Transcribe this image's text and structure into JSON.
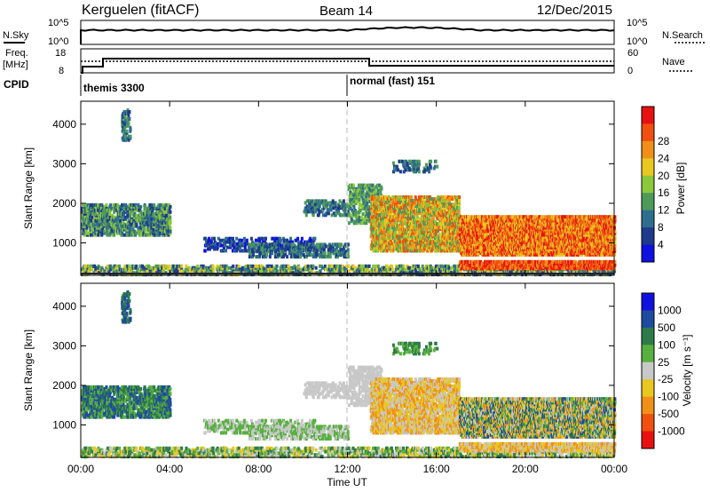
{
  "header": {
    "station": "Kerguelen (fitACF)",
    "beam": "Beam 14",
    "date": "12/Dec/2015"
  },
  "strip1": {
    "left_label": "N.Sky",
    "right_label": "N.Search",
    "left_ticks": [
      "10^5",
      "10^0"
    ],
    "right_ticks": [
      "10^5",
      "10^0"
    ]
  },
  "strip2": {
    "left_label_1": "Freq.",
    "left_label_2": "[MHz]",
    "right_label": "Nave",
    "left_ticks": [
      "18",
      "8"
    ],
    "right_ticks": [
      "60",
      "0"
    ]
  },
  "cpid": {
    "label": "CPID",
    "programs": [
      {
        "name": "themis 3300",
        "start_hour": 0
      },
      {
        "name": "normal (fast) 151",
        "start_hour": 12
      }
    ]
  },
  "xaxis": {
    "label": "Time UT",
    "ticks": [
      "00:00",
      "04:00",
      "08:00",
      "12:00",
      "16:00",
      "20:00",
      "00:00"
    ],
    "range_hours": [
      0,
      24
    ]
  },
  "colors": {
    "power": [
      "#1010e0",
      "#1e3a8c",
      "#2e6e8e",
      "#4e9a5a",
      "#8cc83c",
      "#e8c820",
      "#f09018",
      "#f05010",
      "#e81010"
    ],
    "velocity": [
      "#1010e0",
      "#1e4aa0",
      "#2e7a4a",
      "#58b040",
      "#c8c8c8",
      "#e8c820",
      "#f09018",
      "#f05010",
      "#e81010"
    ]
  },
  "chart_data": [
    {
      "type": "heatmap",
      "title": "",
      "ylabel": "Slant Range [km]",
      "yticks": [
        "1000",
        "2000",
        "3000",
        "4000"
      ],
      "ylim": [
        180,
        4580
      ],
      "colorbar_label": "Power [dB]",
      "colorbar_ticks": [
        "4",
        "8",
        "12",
        "16",
        "20",
        "24",
        "28"
      ]
    },
    {
      "type": "heatmap",
      "title": "",
      "ylabel": "Slant Range [km]",
      "yticks": [
        "1000",
        "2000",
        "3000",
        "4000"
      ],
      "ylim": [
        180,
        4580
      ],
      "colorbar_label": "Velocity [m s⁻¹]",
      "colorbar_ticks": [
        "1000",
        "500",
        "100",
        "25",
        "-25",
        "-100",
        "-500",
        "-1000"
      ]
    }
  ]
}
